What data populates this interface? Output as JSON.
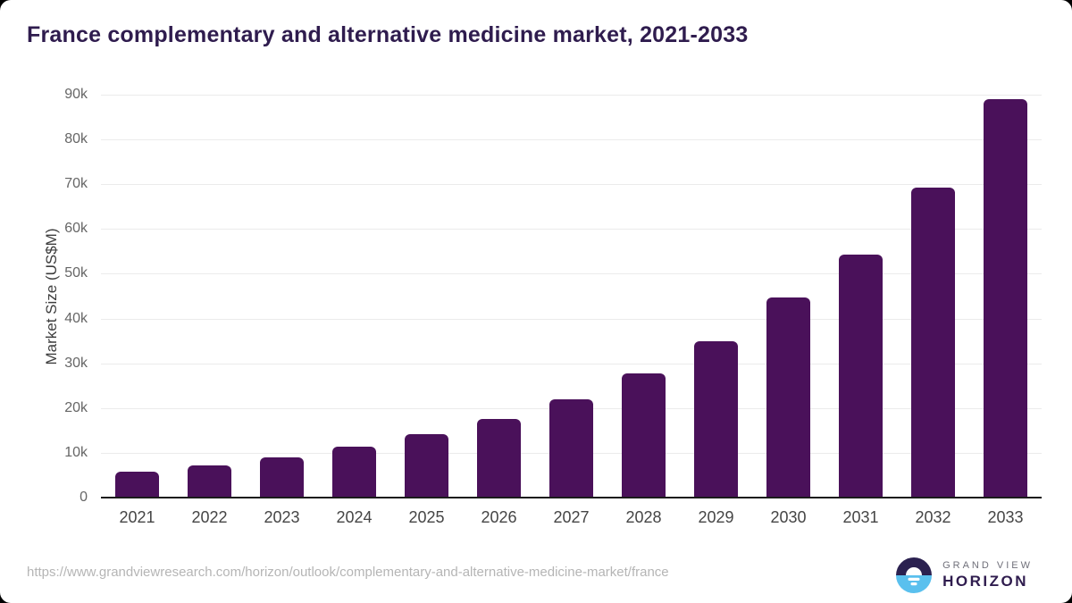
{
  "header": {
    "title": "France complementary and alternative medicine market, 2021-2033"
  },
  "colors": {
    "bar": "#4a115a",
    "title_text": "#2f1c4e",
    "axis_line": "#1b1b1b",
    "gridline": "#ebebeb",
    "logo_dark": "#2b2150",
    "logo_blue": "#5ac0ee"
  },
  "chart_data": {
    "type": "bar",
    "title": "France complementary and alternative medicine market, 2021-2033",
    "categories": [
      "2021",
      "2022",
      "2023",
      "2024",
      "2025",
      "2026",
      "2027",
      "2028",
      "2029",
      "2030",
      "2031",
      "2032",
      "2033"
    ],
    "values": [
      5800,
      7200,
      8900,
      11400,
      14100,
      17500,
      22000,
      27700,
      35000,
      44700,
      54300,
      69200,
      89100
    ],
    "xlabel": "",
    "ylabel": "Market Size (US$M)",
    "ylim": [
      0,
      90000
    ],
    "ytick_values": [
      0,
      10000,
      20000,
      30000,
      40000,
      50000,
      60000,
      70000,
      80000,
      90000
    ],
    "ytick_labels": [
      "0",
      "10k",
      "20k",
      "30k",
      "40k",
      "50k",
      "60k",
      "70k",
      "80k",
      "90k"
    ],
    "grid": "horizontal",
    "legend": "none"
  },
  "footer": {
    "source_url": "https://www.grandviewresearch.com/horizon/outlook/complementary-and-alternative-medicine-market/france",
    "logo": {
      "top_text": "GRAND VIEW",
      "bottom_text": "HORIZON"
    }
  }
}
